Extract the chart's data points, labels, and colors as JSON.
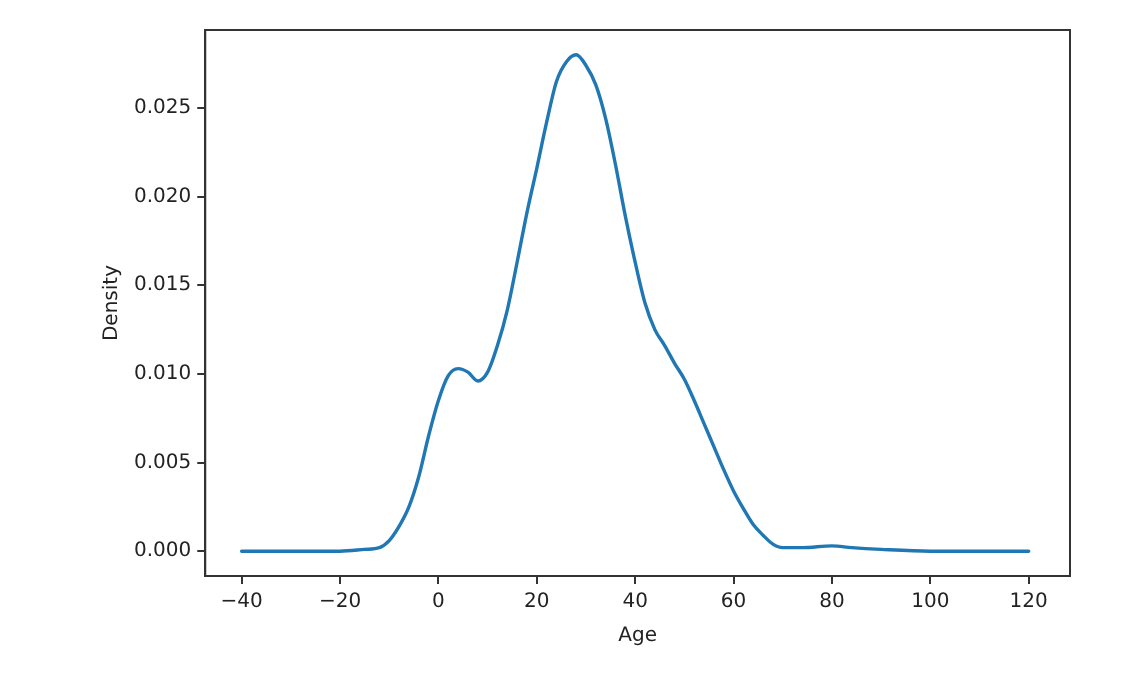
{
  "chart_data": {
    "type": "line",
    "xlabel": "Age",
    "ylabel": "Density",
    "grid": false,
    "legend": false,
    "marker": "none",
    "line_style": "solid",
    "x": [
      -40,
      -20,
      -15,
      -12,
      -10,
      -8,
      -6,
      -4,
      -2,
      0,
      2,
      4,
      6,
      8,
      10,
      12,
      14,
      16,
      18,
      20,
      22,
      24,
      26,
      28,
      30,
      32,
      34,
      36,
      38,
      40,
      42,
      44,
      46,
      48,
      50,
      52,
      54,
      56,
      58,
      60,
      62,
      64,
      66,
      68,
      70,
      74,
      80,
      84,
      90,
      100,
      120
    ],
    "series": [
      {
        "color": "#1f77b4",
        "values": [
          0,
          0,
          0.0001,
          0.0002,
          0.0006,
          0.0014,
          0.0025,
          0.0042,
          0.0065,
          0.0085,
          0.0099,
          0.0103,
          0.0101,
          0.0096,
          0.0101,
          0.0116,
          0.0136,
          0.0163,
          0.0191,
          0.0216,
          0.0242,
          0.0265,
          0.0276,
          0.028,
          0.0274,
          0.0263,
          0.0244,
          0.0218,
          0.0189,
          0.0163,
          0.014,
          0.0125,
          0.0116,
          0.0106,
          0.0097,
          0.0085,
          0.0072,
          0.0059,
          0.0046,
          0.0034,
          0.0024,
          0.0015,
          0.0009,
          0.0004,
          0.0002,
          0.0002,
          0.0003,
          0.0002,
          0.0001,
          0,
          0
        ]
      }
    ],
    "xlim": [
      -47.4,
      128.4
    ],
    "ylim": [
      -0.0014,
      0.0294
    ],
    "xticks": [
      {
        "value": -40,
        "label": "−40"
      },
      {
        "value": -20,
        "label": "−20"
      },
      0,
      20,
      40,
      60,
      80,
      100,
      120
    ],
    "yticks": [
      {
        "value": 0,
        "label": "0.000"
      },
      {
        "value": 0.005,
        "label": "0.005"
      },
      {
        "value": 0.01,
        "label": "0.010"
      },
      {
        "value": 0.015,
        "label": "0.015"
      },
      {
        "value": 0.02,
        "label": "0.020"
      },
      {
        "value": 0.025,
        "label": "0.025"
      }
    ]
  }
}
